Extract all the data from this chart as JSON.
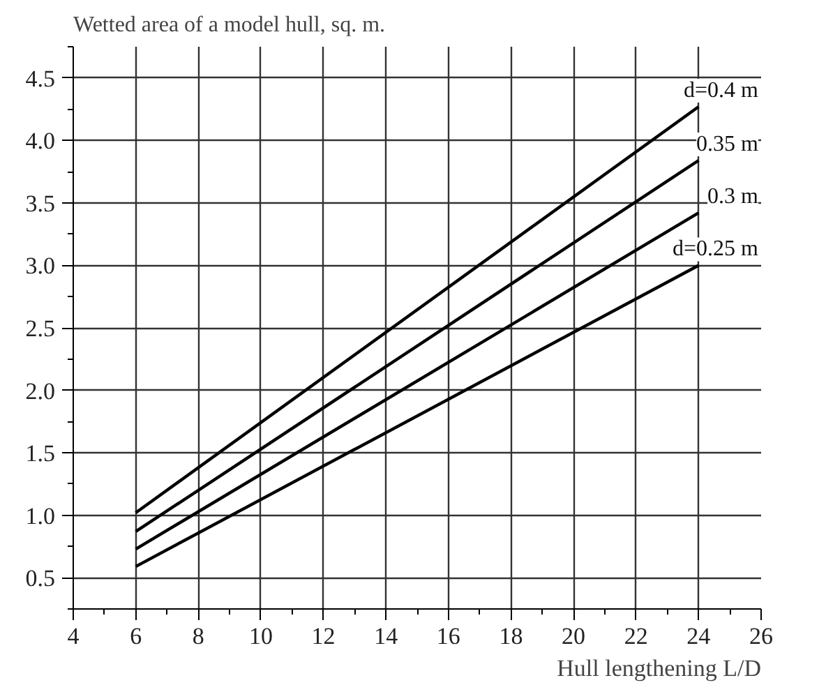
{
  "chart_data": {
    "type": "line",
    "xlabel": "Hull lengthening L/D",
    "ylabel": "Wetted area of a model  hull, sq. m.",
    "x": [
      6,
      24
    ],
    "series": [
      {
        "name": "d=0.4 m",
        "color": "#000000",
        "values": [
          1.02,
          4.27
        ]
      },
      {
        "name": "0.35 m",
        "color": "#000000",
        "values": [
          0.87,
          3.84
        ]
      },
      {
        "name": "0.3 m",
        "color": "#000000",
        "values": [
          0.73,
          3.42
        ]
      },
      {
        "name": "d=0.25 m",
        "color": "#000000",
        "values": [
          0.59,
          3.0
        ]
      }
    ],
    "xlim": [
      4,
      26
    ],
    "ylim": [
      0.25,
      4.75
    ],
    "xticks": [
      4,
      6,
      8,
      10,
      12,
      14,
      16,
      18,
      20,
      22,
      24,
      26
    ],
    "yticks": [
      0.5,
      {
        "value": 1,
        "label": "1.0"
      },
      1.5,
      {
        "value": 2,
        "label": "2.0"
      },
      2.5,
      {
        "value": 3,
        "label": "3.0"
      },
      3.5,
      {
        "value": 4,
        "label": "4.0"
      },
      4.5
    ],
    "grid": true,
    "marker": "none",
    "line_style": "solid"
  }
}
